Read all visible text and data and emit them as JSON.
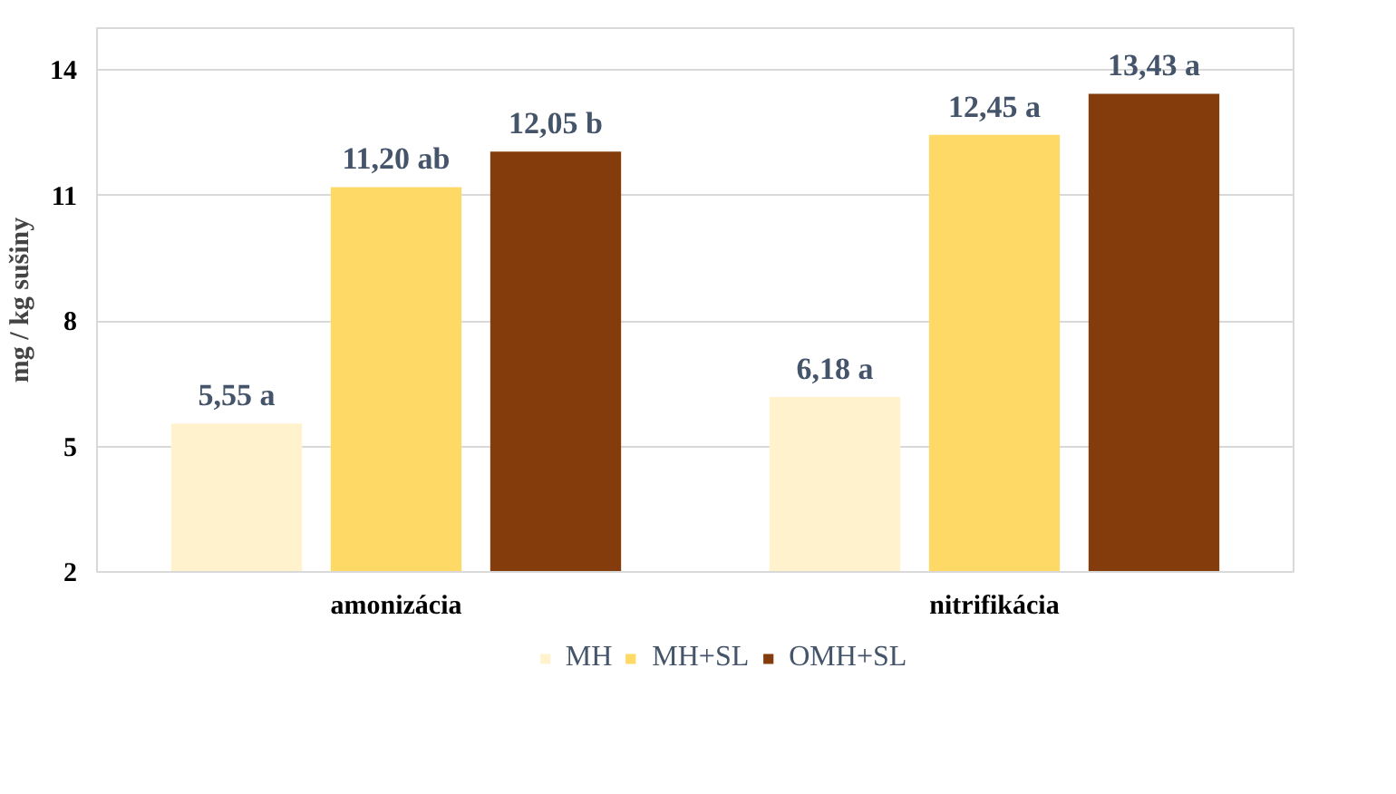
{
  "chart_data": {
    "type": "bar",
    "ylabel": "mg / kg sušiny",
    "categories": [
      "amonizácia",
      "nitrifikácia"
    ],
    "series": [
      {
        "name": "MH",
        "color": "#fff2cc",
        "values": [
          5.55,
          6.18
        ],
        "value_labels": [
          "5,55 a",
          "6,18 a"
        ]
      },
      {
        "name": "MH+SL",
        "color": "#ffd966",
        "values": [
          11.2,
          12.45
        ],
        "value_labels": [
          "11,20 ab",
          "12,45 a"
        ]
      },
      {
        "name": "OMH+SL",
        "color": "#843c0c",
        "values": [
          12.05,
          13.43
        ],
        "value_labels": [
          "12,05 b",
          "13,43 a"
        ]
      }
    ],
    "ylim": [
      2,
      15
    ],
    "yticks": [
      2,
      5,
      8,
      11,
      14
    ],
    "grid": "y",
    "legend": "bottom"
  }
}
